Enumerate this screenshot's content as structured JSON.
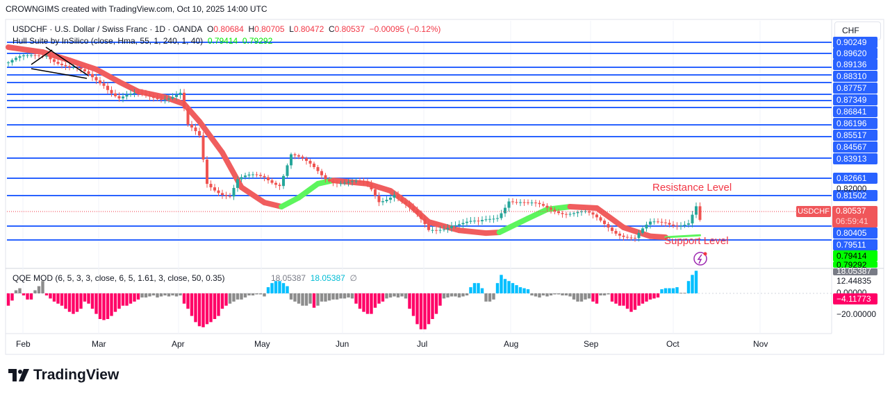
{
  "credit": "CROWNGIMS created with TradingView.com, Oct 10, 2025 14:00 UTC",
  "legend": {
    "symbol": "USDCHF · U.S. Dollar / Swiss Franc · 1D · OANDA",
    "o_label": "O",
    "o": "0.80684",
    "h_label": "H",
    "h": "0.80705",
    "l_label": "L",
    "l": "0.80472",
    "c_label": "C",
    "c": "0.80537",
    "change": "−0.00095 (−0.12%)",
    "hull_name": "Hull Suite by InSilico (close, Hma, 55, 1, 240, 1, 40)",
    "hull_v1": "0.79414",
    "hull_v2": "0.79292",
    "qqe_name": "QQE MOD (6, 5, 3, 3, close, 6, 5, 1.61, 3, close, 50, 0.35)",
    "qqe_v1": "18.05387",
    "qqe_v2": "18.05387",
    "qqe_v3": "∅"
  },
  "currency_button": "CHF",
  "price_levels": [
    "0.90249",
    "0.89620",
    "0.89136",
    "0.88310",
    "0.87757",
    "0.87349",
    "0.86841",
    "0.86196",
    "0.85517",
    "0.84567",
    "0.83913",
    "0.82661",
    "0.81502",
    "0.80405",
    "0.79511"
  ],
  "price_scale": {
    "plain": "0.82000",
    "symbol_tag": "USDCHF",
    "current": "0.80537",
    "countdown": "06:59:41",
    "hull1": "0.79414",
    "hull2": "0.79292"
  },
  "qqe_scale": {
    "top": "18.05387",
    "v1": "12.44835",
    "zero": "0.00000",
    "current": "−4.11773",
    "v2": "−20.00000"
  },
  "annotations": {
    "resistance": "Resistance Level",
    "support": "Support Level"
  },
  "months": [
    "Feb",
    "Mar",
    "Apr",
    "May",
    "Jun",
    "Jul",
    "Aug",
    "Sep",
    "Oct",
    "Nov"
  ],
  "logo": "TradingView",
  "colors": {
    "up": "#26a69a",
    "down": "#ef5350",
    "level": "#2962ff",
    "hull_down": "#f05d5e",
    "hull_up": "#5df55d",
    "qqe_pink": "#ff0066",
    "qqe_gray": "#8c8c8c",
    "qqe_blue": "#00bfff"
  },
  "chart_data": [
    {
      "type": "candlestick",
      "title": "USDCHF 1D",
      "note": "approximate close path by bar index",
      "price_path": [
        [
          0,
          0.8857
        ],
        [
          5,
          0.8875
        ],
        [
          10,
          0.891
        ],
        [
          16,
          0.8822
        ],
        [
          20,
          0.8794
        ],
        [
          25,
          0.8758
        ],
        [
          29,
          0.868
        ],
        [
          36,
          0.868
        ],
        [
          45,
          0.8698
        ],
        [
          47,
          0.8521
        ],
        [
          50,
          0.8468
        ],
        [
          52,
          0.8238
        ],
        [
          58,
          0.8185
        ],
        [
          60,
          0.8255
        ],
        [
          67,
          0.8273
        ],
        [
          71,
          0.8248
        ],
        [
          74,
          0.839
        ],
        [
          78,
          0.8333
        ],
        [
          83,
          0.8273
        ],
        [
          89,
          0.8248
        ],
        [
          94,
          0.822
        ],
        [
          97,
          0.8149
        ],
        [
          101,
          0.8202
        ],
        [
          107,
          0.8061
        ],
        [
          110,
          0.799
        ],
        [
          116,
          0.8043
        ],
        [
          123,
          0.8025
        ],
        [
          128,
          0.8078
        ],
        [
          131,
          0.8167
        ],
        [
          136,
          0.8121
        ],
        [
          143,
          0.8114
        ],
        [
          151,
          0.8078
        ],
        [
          157,
          0.8025
        ],
        [
          164,
          0.7954
        ],
        [
          168,
          0.8025
        ],
        [
          172,
          0.805
        ],
        [
          178,
          0.8036
        ],
        [
          180,
          0.8107
        ],
        [
          181,
          0.80537
        ]
      ],
      "hull": [
        [
          0,
          0.8935,
          "d"
        ],
        [
          9,
          0.891,
          "d"
        ],
        [
          16,
          0.8868,
          "d"
        ],
        [
          23,
          0.8822,
          "d"
        ],
        [
          29,
          0.8758,
          "d"
        ],
        [
          34,
          0.8709,
          "d"
        ],
        [
          41,
          0.868,
          "d"
        ],
        [
          46,
          0.8645,
          "d"
        ],
        [
          50,
          0.8556,
          "d"
        ],
        [
          56,
          0.8397,
          "d"
        ],
        [
          61,
          0.822,
          "d"
        ],
        [
          67,
          0.8142,
          "d"
        ],
        [
          71.5,
          0.8121,
          "u"
        ],
        [
          76,
          0.8167,
          "u"
        ],
        [
          81,
          0.8238,
          "u"
        ],
        [
          85,
          0.8255,
          "d"
        ],
        [
          94,
          0.8238,
          "d"
        ],
        [
          100,
          0.8202,
          "d"
        ],
        [
          105,
          0.8131,
          "d"
        ],
        [
          110,
          0.8043,
          "d"
        ],
        [
          118,
          0.8,
          "d"
        ],
        [
          125,
          0.7986,
          "d"
        ],
        [
          128.5,
          0.799,
          "u"
        ],
        [
          136,
          0.8061,
          "u"
        ],
        [
          141,
          0.8107,
          "u"
        ],
        [
          147,
          0.8121,
          "d"
        ],
        [
          154,
          0.8114,
          "d"
        ],
        [
          161,
          0.8015,
          "d"
        ],
        [
          168,
          0.797,
          "d"
        ],
        [
          172,
          0.7965,
          "u"
        ],
        [
          181,
          0.7975,
          "u"
        ]
      ]
    },
    {
      "type": "bar",
      "title": "QQE MOD",
      "ylim": [
        -20,
        18.05387
      ],
      "bars": [
        [
          -12,
          "p"
        ],
        [
          -7,
          "p"
        ],
        [
          3,
          "g"
        ],
        [
          5,
          "g"
        ],
        [
          -2,
          "p"
        ],
        [
          -6,
          "p"
        ],
        [
          -6,
          "p"
        ],
        [
          3,
          "g"
        ],
        [
          7,
          "g"
        ],
        [
          12,
          "g"
        ],
        [
          -2,
          "p"
        ],
        [
          -5,
          "p"
        ],
        [
          -8,
          "p"
        ],
        [
          -10,
          "p"
        ],
        [
          -12,
          "p"
        ],
        [
          -15,
          "p"
        ],
        [
          -18,
          "p"
        ],
        [
          -20,
          "p"
        ],
        [
          -18,
          "p"
        ],
        [
          -15,
          "p"
        ],
        [
          -8,
          "p"
        ],
        [
          -10,
          "p"
        ],
        [
          -15,
          "p"
        ],
        [
          -20,
          "p"
        ],
        [
          -25,
          "p"
        ],
        [
          -26,
          "p"
        ],
        [
          -25,
          "p"
        ],
        [
          -22,
          "p"
        ],
        [
          -18,
          "p"
        ],
        [
          -15,
          "p"
        ],
        [
          -12,
          "p"
        ],
        [
          -12,
          "p"
        ],
        [
          -10,
          "p"
        ],
        [
          -8,
          "p"
        ],
        [
          -6,
          "p"
        ],
        [
          -4,
          "g"
        ],
        [
          -4,
          "g"
        ],
        [
          -3,
          "g"
        ],
        [
          -2,
          "g"
        ],
        [
          -4,
          "g"
        ],
        [
          -3,
          "g"
        ],
        [
          -2,
          "g"
        ],
        [
          -3,
          "g"
        ],
        [
          -2,
          "g"
        ],
        [
          -3,
          "g"
        ],
        [
          -2,
          "g"
        ],
        [
          -10,
          "p"
        ],
        [
          -15,
          "p"
        ],
        [
          -22,
          "p"
        ],
        [
          -28,
          "p"
        ],
        [
          -32,
          "p"
        ],
        [
          -33,
          "p"
        ],
        [
          -30,
          "p"
        ],
        [
          -28,
          "p"
        ],
        [
          -25,
          "p"
        ],
        [
          -22,
          "p"
        ],
        [
          -15,
          "p"
        ],
        [
          -12,
          "p"
        ],
        [
          -10,
          "g"
        ],
        [
          -8,
          "g"
        ],
        [
          -6,
          "g"
        ],
        [
          -6,
          "g"
        ],
        [
          -4,
          "g"
        ],
        [
          -2,
          "g"
        ],
        [
          -2,
          "g"
        ],
        [
          -1,
          "g"
        ],
        [
          -1,
          "g"
        ],
        [
          -3,
          "g"
        ],
        [
          6,
          "b"
        ],
        [
          10,
          "b"
        ],
        [
          12,
          "b"
        ],
        [
          12,
          "b"
        ],
        [
          10,
          "b"
        ],
        [
          7,
          "b"
        ],
        [
          -6,
          "g"
        ],
        [
          -8,
          "g"
        ],
        [
          -10,
          "g"
        ],
        [
          -12,
          "g"
        ],
        [
          -12,
          "g"
        ],
        [
          -10,
          "g"
        ],
        [
          -14,
          "p"
        ],
        [
          -12,
          "g"
        ],
        [
          -8,
          "g"
        ],
        [
          -8,
          "g"
        ],
        [
          -7,
          "g"
        ],
        [
          -6,
          "g"
        ],
        [
          -6,
          "g"
        ],
        [
          -5,
          "g"
        ],
        [
          -5,
          "g"
        ],
        [
          -4,
          "g"
        ],
        [
          -5,
          "g"
        ],
        [
          -10,
          "p"
        ],
        [
          -15,
          "p"
        ],
        [
          -18,
          "p"
        ],
        [
          -20,
          "p"
        ],
        [
          -20,
          "p"
        ],
        [
          -14,
          "p"
        ],
        [
          -10,
          "p"
        ],
        [
          -8,
          "p"
        ],
        [
          -5,
          "g"
        ],
        [
          -4,
          "g"
        ],
        [
          -3,
          "g"
        ],
        [
          -4,
          "g"
        ],
        [
          -3,
          "g"
        ],
        [
          -5,
          "g"
        ],
        [
          -15,
          "p"
        ],
        [
          -22,
          "p"
        ],
        [
          -30,
          "p"
        ],
        [
          -35,
          "p"
        ],
        [
          -35,
          "p"
        ],
        [
          -30,
          "p"
        ],
        [
          -25,
          "p"
        ],
        [
          -20,
          "p"
        ],
        [
          -12,
          "p"
        ],
        [
          -5,
          "g"
        ],
        [
          -4,
          "g"
        ],
        [
          -3,
          "g"
        ],
        [
          -3,
          "g"
        ],
        [
          -4,
          "g"
        ],
        [
          -3,
          "g"
        ],
        [
          -2,
          "g"
        ],
        [
          6,
          "b"
        ],
        [
          10,
          "b"
        ],
        [
          10,
          "b"
        ],
        [
          5,
          "b"
        ],
        [
          -8,
          "g"
        ],
        [
          -8,
          "g"
        ],
        [
          -6,
          "g"
        ],
        [
          10,
          "b"
        ],
        [
          18,
          "b"
        ],
        [
          14,
          "b"
        ],
        [
          12,
          "b"
        ],
        [
          10,
          "b"
        ],
        [
          8,
          "b"
        ],
        [
          6,
          "b"
        ],
        [
          5,
          "b"
        ],
        [
          4,
          "b"
        ],
        [
          -2,
          "g"
        ],
        [
          -3,
          "g"
        ],
        [
          -4,
          "g"
        ],
        [
          -2,
          "g"
        ],
        [
          -3,
          "g"
        ],
        [
          -2,
          "g"
        ],
        [
          -1,
          "g"
        ],
        [
          -1,
          "g"
        ],
        [
          -2,
          "g"
        ],
        [
          -2,
          "g"
        ],
        [
          -3,
          "g"
        ],
        [
          -6,
          "g"
        ],
        [
          -8,
          "g"
        ],
        [
          -8,
          "g"
        ],
        [
          -6,
          "g"
        ],
        [
          -5,
          "g"
        ],
        [
          -8,
          "p"
        ],
        [
          -10,
          "p"
        ],
        [
          -2,
          "g"
        ],
        [
          -2,
          "g"
        ],
        [
          -1,
          "g"
        ],
        [
          -8,
          "p"
        ],
        [
          -10,
          "p"
        ],
        [
          -12,
          "p"
        ],
        [
          -12,
          "p"
        ],
        [
          -15,
          "p"
        ],
        [
          -18,
          "p"
        ],
        [
          -16,
          "p"
        ],
        [
          -12,
          "p"
        ],
        [
          -10,
          "p"
        ],
        [
          -8,
          "p"
        ],
        [
          -6,
          "p"
        ],
        [
          -5,
          "p"
        ],
        [
          -4,
          "p"
        ],
        [
          4,
          "b"
        ],
        [
          5,
          "b"
        ],
        [
          5,
          "b"
        ],
        [
          5,
          "b"
        ],
        [
          6,
          "b"
        ],
        [
          0.5,
          "g"
        ],
        [
          0.5,
          "g"
        ],
        [
          12,
          "b"
        ],
        [
          18,
          "b"
        ],
        [
          22,
          "b"
        ]
      ]
    }
  ]
}
